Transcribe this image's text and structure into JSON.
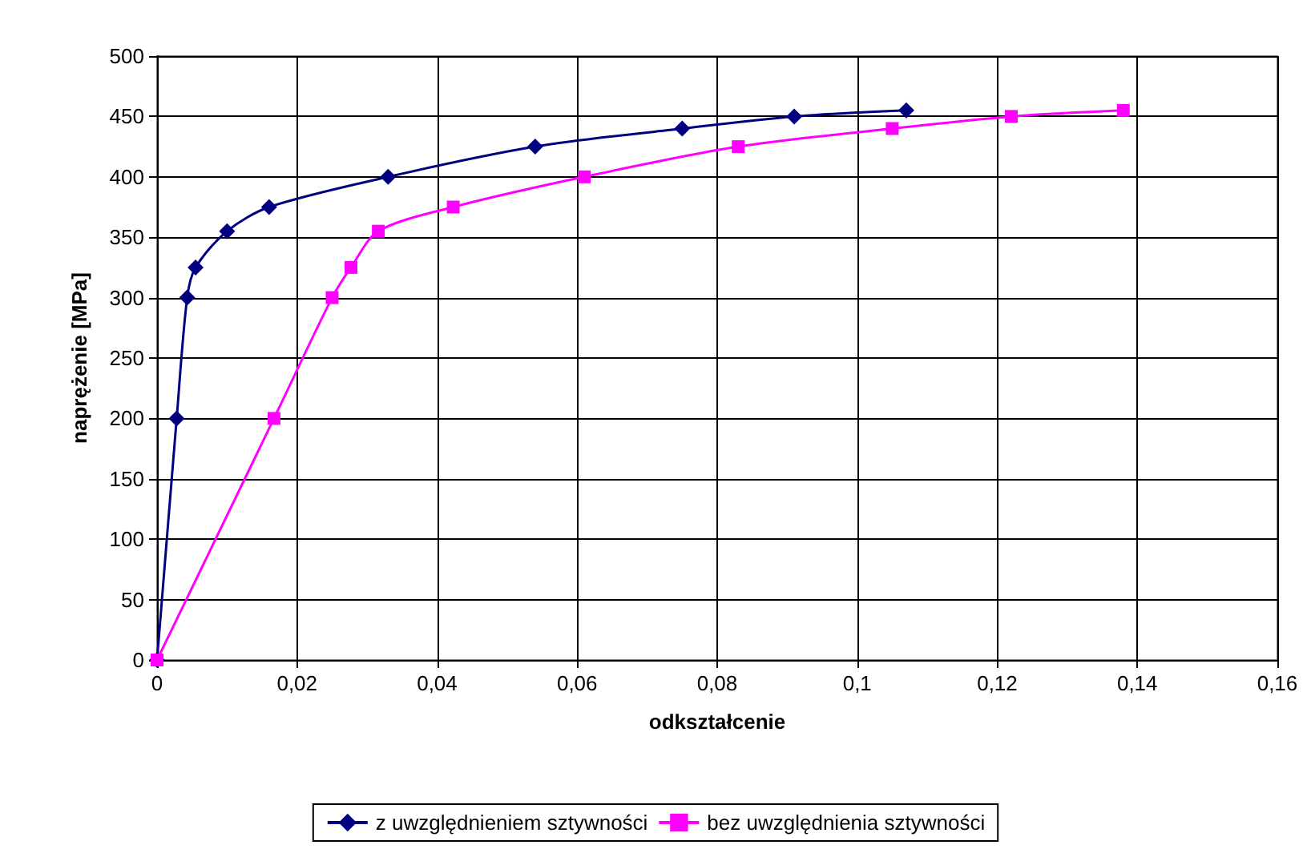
{
  "chart_data": {
    "type": "line",
    "xlabel": "odkształcenie",
    "ylabel": "naprężenie [MPa]",
    "xlim": [
      0,
      0.16
    ],
    "ylim": [
      0,
      500
    ],
    "xticks": [
      0,
      {
        "value": 0.02,
        "label": "0,02"
      },
      {
        "value": 0.04,
        "label": "0,04"
      },
      {
        "value": 0.06,
        "label": "0,06"
      },
      {
        "value": 0.08,
        "label": "0,08"
      },
      {
        "value": 0.1,
        "label": "0,1"
      },
      {
        "value": 0.12,
        "label": "0,12"
      },
      {
        "value": 0.14,
        "label": "0,14"
      },
      {
        "value": 0.16,
        "label": "0,16"
      }
    ],
    "yticks": [
      0,
      50,
      100,
      150,
      200,
      250,
      300,
      350,
      400,
      450,
      500
    ],
    "grid": true,
    "legend": "bottom",
    "series": [
      {
        "name": "z uwzględnieniem sztywności",
        "color": "#000080",
        "marker": "diamond",
        "x": [
          0,
          0.0028,
          0.0043,
          0.0055,
          0.01,
          0.016,
          0.033,
          0.054,
          0.075,
          0.091,
          0.107
        ],
        "values": [
          0,
          200,
          300,
          325,
          355,
          375,
          400,
          425,
          440,
          450,
          455
        ]
      },
      {
        "name": "bez uwzględnienia sztywności",
        "color": "#ff00ff",
        "marker": "square",
        "x": [
          0,
          0.0167,
          0.025,
          0.0277,
          0.0316,
          0.0423,
          0.061,
          0.083,
          0.105,
          0.122,
          0.138
        ],
        "values": [
          0,
          200,
          300,
          325,
          355,
          375,
          400,
          425,
          440,
          450,
          455
        ]
      }
    ]
  }
}
